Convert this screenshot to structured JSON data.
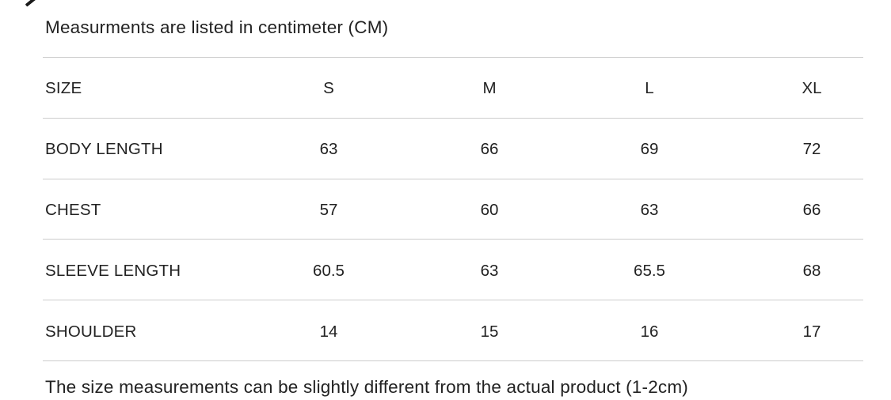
{
  "header_note": "Measurments are listed in centimeter (CM)",
  "table": {
    "size_label": "SIZE",
    "columns": [
      "S",
      "M",
      "L",
      "XL"
    ],
    "rows": [
      {
        "label": "BODY LENGTH",
        "values": [
          "63",
          "66",
          "69",
          "72"
        ]
      },
      {
        "label": "CHEST",
        "values": [
          "57",
          "60",
          "63",
          "66"
        ]
      },
      {
        "label": "SLEEVE LENGTH",
        "values": [
          "60.5",
          "63",
          "65.5",
          "68"
        ]
      },
      {
        "label": "SHOULDER",
        "values": [
          "14",
          "15",
          "16",
          "17"
        ]
      }
    ]
  },
  "footer_note": "The size measurements can be slightly different from the actual product (1-2cm)",
  "decor": {
    "artifact_color": "#1a1a1a",
    "divider_color": "#cccccc"
  }
}
